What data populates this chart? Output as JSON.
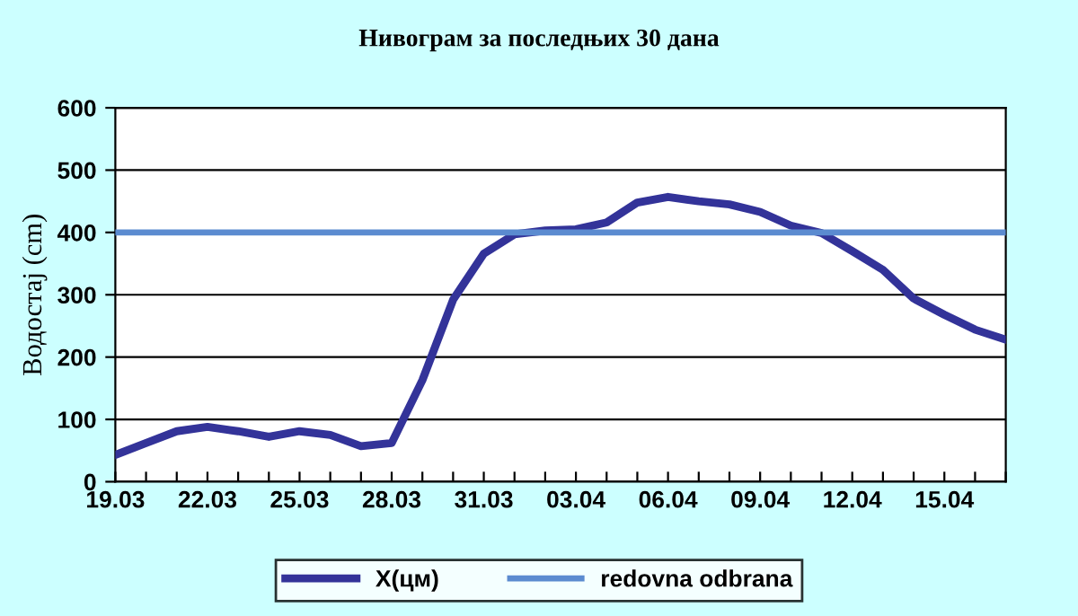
{
  "chart_data": {
    "type": "line",
    "title": "Нивограм за последњих 30 дана",
    "ylabel": "Водостај (cm)",
    "categories": [
      "19.03",
      null,
      null,
      "22.03",
      null,
      null,
      "25.03",
      null,
      null,
      "28.03",
      null,
      null,
      "31.03",
      null,
      null,
      "03.04",
      null,
      null,
      "06.04",
      null,
      null,
      "09.04",
      null,
      null,
      "12.04",
      null,
      null,
      "15.04",
      null,
      null
    ],
    "series": [
      {
        "name": "X(цм)",
        "color": "#333399",
        "values": [
          43,
          62,
          81,
          88,
          81,
          72,
          81,
          75,
          57,
          62,
          163,
          292,
          366,
          397,
          403,
          405,
          416,
          448,
          457,
          450,
          445,
          433,
          411,
          399,
          370,
          340,
          294,
          268,
          244,
          228
        ]
      }
    ],
    "ylim": [
      0,
      600
    ],
    "yticks": [
      0,
      100,
      200,
      300,
      400,
      500,
      600
    ],
    "grid": "y",
    "legend": "bottom",
    "marker": "none",
    "line_style": "solid",
    "ref_lines": [
      {
        "axis": "y",
        "value": 400,
        "label": "redovna odbrana",
        "color": "#5b8bd0"
      }
    ]
  }
}
